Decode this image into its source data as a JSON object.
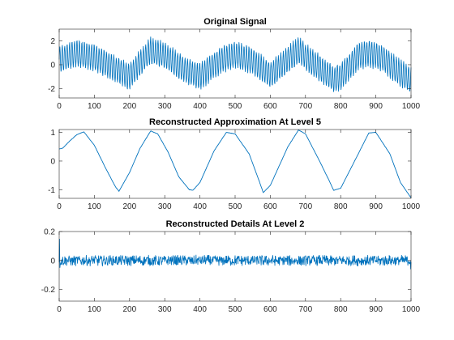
{
  "chart_data": [
    {
      "type": "line",
      "title": "Original Signal",
      "xlabel": "",
      "ylabel": "",
      "xlim": [
        0,
        1000
      ],
      "ylim": [
        -2.8,
        3
      ],
      "x_ticks": [
        0,
        100,
        200,
        300,
        400,
        500,
        600,
        700,
        800,
        900,
        1000
      ],
      "y_ticks": [
        -2,
        0,
        2
      ],
      "grid": false,
      "series_color": "#0072BD",
      "series": [
        {
          "x": [
            0,
            50,
            100,
            150,
            200,
            260,
            300,
            350,
            400,
            460,
            500,
            550,
            600,
            680,
            720,
            780,
            800,
            850,
            880,
            920,
            960,
            1000
          ],
          "y": [
            0.4,
            1.0,
            0.6,
            -0.2,
            -1.0,
            1.2,
            0.8,
            -0.3,
            -1.0,
            0.4,
            0.9,
            0.3,
            -0.9,
            1.2,
            0.2,
            -1.2,
            -1.0,
            0.7,
            1.0,
            0.5,
            -0.5,
            -1.3
          ],
          "amplitude": 1.1
        }
      ]
    },
    {
      "type": "line",
      "title": "Reconstructed Approximation At Level 5",
      "xlabel": "",
      "ylabel": "",
      "xlim": [
        0,
        1000
      ],
      "ylim": [
        -1.3,
        1.1
      ],
      "x_ticks": [
        0,
        100,
        200,
        300,
        400,
        500,
        600,
        700,
        800,
        900,
        1000
      ],
      "y_ticks": [
        -1,
        0,
        1
      ],
      "grid": false,
      "series_color": "#0072BD",
      "series": [
        {
          "x": [
            0,
            10,
            30,
            50,
            70,
            100,
            130,
            160,
            170,
            200,
            230,
            260,
            280,
            310,
            340,
            370,
            380,
            400,
            440,
            475,
            500,
            540,
            570,
            580,
            600,
            650,
            680,
            700,
            740,
            770,
            780,
            800,
            850,
            880,
            900,
            940,
            970,
            1000
          ],
          "y": [
            0.42,
            0.45,
            0.7,
            0.92,
            1.02,
            0.55,
            -0.2,
            -0.9,
            -1.05,
            -0.4,
            0.45,
            1.05,
            0.95,
            0.3,
            -0.55,
            -1.0,
            -1.02,
            -0.75,
            0.35,
            1.0,
            0.95,
            0.25,
            -0.75,
            -1.1,
            -0.85,
            0.5,
            1.08,
            0.95,
            0.0,
            -0.75,
            -1.02,
            -0.95,
            0.25,
            0.98,
            1.0,
            0.25,
            -0.75,
            -1.28
          ]
        }
      ]
    },
    {
      "type": "line",
      "title": "Reconstructed Details At Level 2",
      "xlabel": "",
      "ylabel": "",
      "xlim": [
        0,
        1000
      ],
      "ylim": [
        -0.28,
        0.2
      ],
      "x_ticks": [
        0,
        100,
        200,
        300,
        400,
        500,
        600,
        700,
        800,
        900,
        1000
      ],
      "y_ticks": [
        -0.2,
        0,
        0.2
      ],
      "grid": false,
      "series_color": "#0072BD",
      "series": [
        {
          "x": [
            0,
            1000
          ],
          "y": [
            0,
            0
          ],
          "noise_amplitude": 0.04,
          "edge_spike_start": 0.15,
          "edge_spike_end": -0.06
        }
      ]
    }
  ]
}
